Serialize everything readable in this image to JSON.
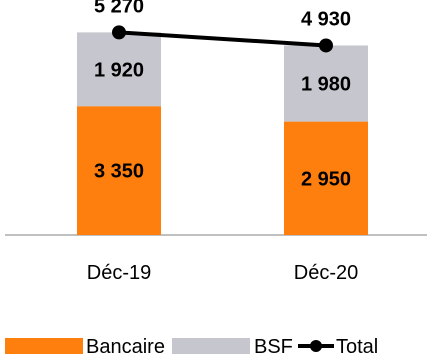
{
  "chart_data": {
    "type": "bar",
    "stacked": true,
    "categories": [
      "Déc-19",
      "Déc-20"
    ],
    "series": [
      {
        "name": "Bancaire",
        "values": [
          3350,
          2950
        ],
        "labels": [
          "3 350",
          "2 950"
        ],
        "color": "#FF7F0E"
      },
      {
        "name": "BSF",
        "values": [
          1920,
          1980
        ],
        "labels": [
          "1 920",
          "1 980"
        ],
        "color": "#C6C6CF"
      }
    ],
    "total": {
      "name": "Total",
      "values": [
        5270,
        4930
      ],
      "labels": [
        "5 270",
        "4 930"
      ],
      "color": "#000000"
    },
    "ylim": [
      0,
      5800
    ],
    "grid": false,
    "legend_position": "bottom",
    "title": "",
    "xlabel": "",
    "ylabel": ""
  }
}
